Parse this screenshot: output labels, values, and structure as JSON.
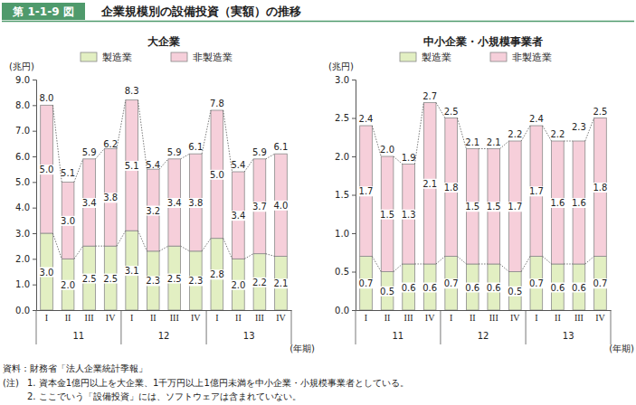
{
  "figure": {
    "number": "第 1-1-9 図",
    "title": "企業規模別の設備投資（実額）の推移",
    "source": "資料：財務省「法人企業統計季報」",
    "notes_label": "(注)",
    "notes": [
      "1. 資本金1億円以上を大企業、1千万円以上1億円未満を中小企業・小規模事業者としている。",
      "2. ここでいう「設備投資」には、ソフトウェアは含まれていない。"
    ]
  },
  "chart_data": [
    {
      "type": "bar",
      "stacked": true,
      "data_labels": true,
      "legend": "top",
      "title": "大企業",
      "y_label": "(兆円)",
      "x_label": "(年期)",
      "categories": [
        "I",
        "II",
        "III",
        "IV",
        "I",
        "II",
        "III",
        "IV",
        "I",
        "II",
        "III",
        "IV"
      ],
      "x_groups": [
        "11",
        "12",
        "13"
      ],
      "ylim": [
        0,
        9
      ],
      "yticks": [
        {
          "value": 0,
          "label": "0.0"
        },
        {
          "value": 1,
          "label": "1.0"
        },
        {
          "value": 2,
          "label": "2.0"
        },
        {
          "value": 3,
          "label": "3.0"
        },
        {
          "value": 4,
          "label": "4.0"
        },
        {
          "value": 5,
          "label": "5.0"
        },
        {
          "value": 6,
          "label": "6.0"
        },
        {
          "value": 7,
          "label": "7.0"
        },
        {
          "value": 8,
          "label": "8.0"
        },
        {
          "value": 9,
          "label": "9.0"
        }
      ],
      "series": [
        {
          "name": "製造業",
          "color": "#e2efc2",
          "values": [
            3.0,
            2.0,
            2.5,
            2.5,
            3.1,
            2.3,
            2.5,
            2.3,
            2.8,
            2.0,
            2.2,
            2.1
          ],
          "value_labels": [
            "3.0",
            "2.0",
            "2.5",
            "2.5",
            "3.1",
            "2.3",
            "2.5",
            "2.3",
            "2.8",
            "2.0",
            "2.2",
            "2.1"
          ]
        },
        {
          "name": "非製造業",
          "color": "#f6cfda",
          "values": [
            5.0,
            3.0,
            3.4,
            3.8,
            5.1,
            3.2,
            3.4,
            3.8,
            5.0,
            3.4,
            3.7,
            4.0
          ],
          "value_labels": [
            "5.0",
            "3.0",
            "3.4",
            "3.8",
            "5.1",
            "3.2",
            "3.4",
            "3.8",
            "5.0",
            "3.4",
            "3.7",
            "4.0"
          ]
        }
      ],
      "totals": [
        8.0,
        5.1,
        5.9,
        6.2,
        8.3,
        5.4,
        5.9,
        6.1,
        7.8,
        5.4,
        5.9,
        6.1
      ],
      "total_labels": [
        "8.0",
        "5.1",
        "5.9",
        "6.2",
        "8.3",
        "5.4",
        "5.9",
        "6.1",
        "7.8",
        "5.4",
        "5.9",
        "6.1"
      ]
    },
    {
      "type": "bar",
      "stacked": true,
      "data_labels": true,
      "legend": "top",
      "title": "中小企業・小規模事業者",
      "y_label": "(兆円)",
      "x_label": "(年期)",
      "categories": [
        "I",
        "II",
        "III",
        "IV",
        "I",
        "II",
        "III",
        "IV",
        "I",
        "II",
        "III",
        "IV"
      ],
      "x_groups": [
        "11",
        "12",
        "13"
      ],
      "ylim": [
        0,
        3
      ],
      "yticks": [
        {
          "value": 0,
          "label": "0.0"
        },
        {
          "value": 0.5,
          "label": "0.5"
        },
        {
          "value": 1,
          "label": "1.0"
        },
        {
          "value": 1.5,
          "label": "1.5"
        },
        {
          "value": 2,
          "label": "2.0"
        },
        {
          "value": 2.5,
          "label": "2.5"
        },
        {
          "value": 3,
          "label": "3.0"
        }
      ],
      "series": [
        {
          "name": "製造業",
          "color": "#e2efc2",
          "values": [
            0.7,
            0.5,
            0.6,
            0.6,
            0.7,
            0.6,
            0.6,
            0.5,
            0.7,
            0.6,
            0.6,
            0.7
          ],
          "value_labels": [
            "0.7",
            "0.5",
            "0.6",
            "0.6",
            "0.7",
            "0.6",
            "0.6",
            "0.5",
            "0.7",
            "0.6",
            "0.6",
            "0.7"
          ]
        },
        {
          "name": "非製造業",
          "color": "#f6cfda",
          "values": [
            1.7,
            1.5,
            1.3,
            2.1,
            1.8,
            1.5,
            1.5,
            1.7,
            1.7,
            1.6,
            1.6,
            1.8
          ],
          "value_labels": [
            "1.7",
            "1.5",
            "1.3",
            "2.1",
            "1.8",
            "1.5",
            "1.5",
            "1.7",
            "1.7",
            "1.6",
            "1.6",
            "1.8"
          ]
        }
      ],
      "totals": [
        2.4,
        2.0,
        1.9,
        2.7,
        2.5,
        2.1,
        2.1,
        2.2,
        2.4,
        2.2,
        2.3,
        2.5
      ],
      "total_labels": [
        "2.4",
        "2.0",
        "1.9",
        "2.7",
        "2.5",
        "2.1",
        "2.1",
        "2.2",
        "2.4",
        "2.2",
        "2.3",
        "2.5"
      ]
    }
  ]
}
